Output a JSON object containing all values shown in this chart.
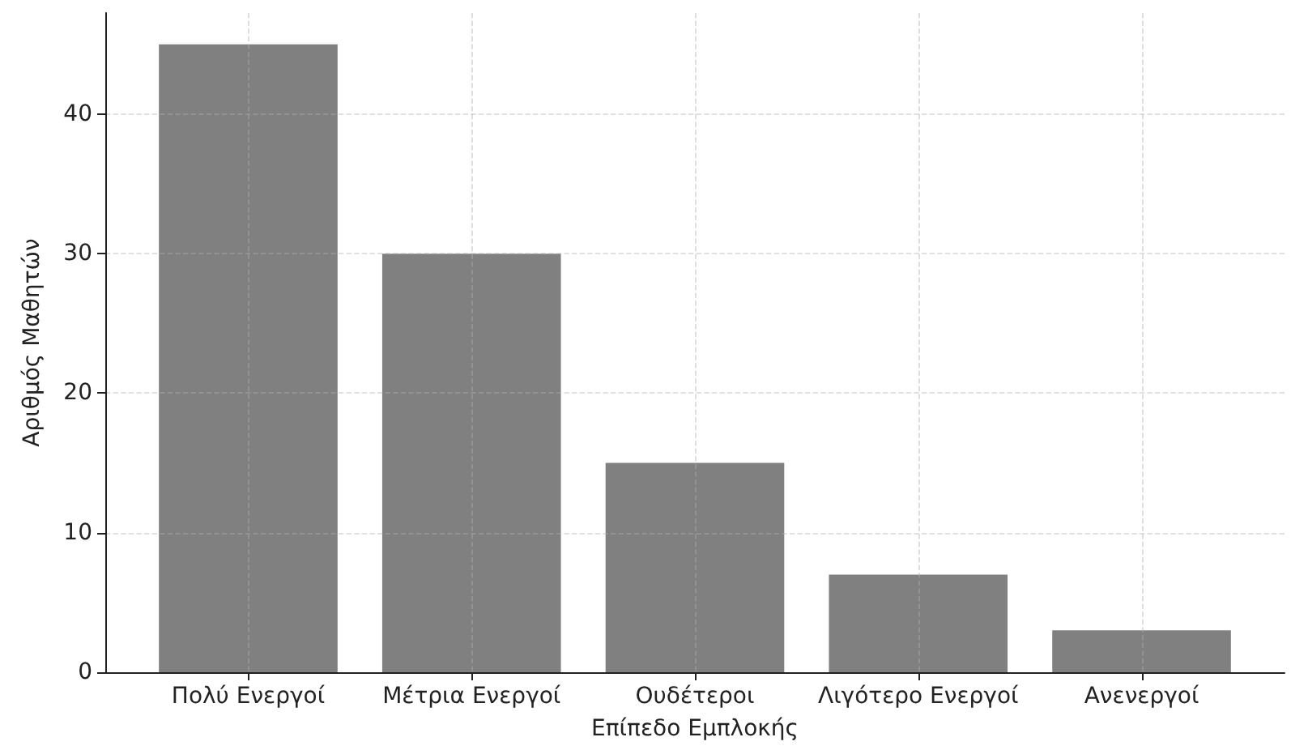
{
  "chart_data": {
    "type": "bar",
    "xlabel": "Επίπεδο Εμπλοκής",
    "ylabel": "Αριθμός Μαθητών",
    "categories": [
      "Πολύ Ενεργοί",
      "Μέτρια Ενεργοί",
      "Ουδέτεροι",
      "Λιγότερο Ενεργοί",
      "Ανενεργοί"
    ],
    "values": [
      45,
      30,
      15,
      7,
      3
    ],
    "color": "#808080",
    "ylim": [
      0,
      47.25
    ],
    "yticks": [
      0,
      10,
      20,
      30,
      40
    ],
    "grid": true
  }
}
